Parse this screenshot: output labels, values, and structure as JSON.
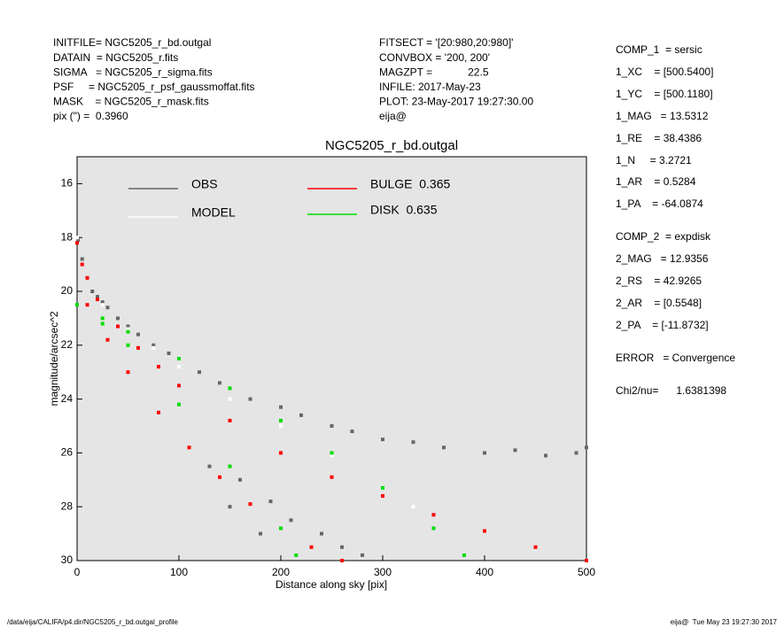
{
  "header": {
    "left": [
      "INITFILE= NGC5205_r_bd.outgal",
      "DATAIN  = NGC5205_r.fits",
      "SIGMA   = NGC5205_r_sigma.fits",
      "PSF     = NGC5205_r_psf_gaussmoffat.fits",
      "MASK    = NGC5205_r_mask.fits",
      "pix (\") =  0.3960"
    ],
    "middle": [
      "FITSECT = '[20:980,20:980]'",
      "CONVBOX = '200, 200'",
      "MAGZPT =            22.5",
      "INFILE: 2017-May-23",
      "PLOT: 23-May-2017 19:27:30.00",
      "eija@"
    ],
    "right": [
      "COMP_1  = sersic",
      "1_XC    = [500.5400]",
      "1_YC    = [500.1180]",
      "1_MAG   = 13.5312",
      "1_RE    = 38.4386",
      "1_N     = 3.2721",
      "1_AR    = 0.5284",
      "1_PA    = -64.0874",
      "COMP_2  = expdisk",
      "2_MAG   = 12.9356",
      "2_RS    = 42.9265",
      "2_AR    = [0.5548]",
      "2_PA    = [-11.8732]",
      "ERROR   = Convergence",
      "Chi2/nu=      1.6381398"
    ]
  },
  "footer": {
    "left": "/data/eija/CALIFA/p4.dir/NGC5205_r_bd.outgal_profile",
    "right": "eija@  Tue May 23 19:27:30 2017"
  },
  "chart_data": {
    "type": "scatter",
    "title": "NGC5205_r_bd.outgal",
    "x_label": "Distance along sky [pix]",
    "y_label": "magnitude/arcsec^2",
    "xlim": [
      0,
      500
    ],
    "xticks": [
      0,
      100,
      200,
      300,
      400,
      500
    ],
    "ylim": [
      30,
      15
    ],
    "yticks": [
      16,
      18,
      20,
      22,
      24,
      26,
      28,
      30
    ],
    "series": [
      {
        "name": "OBS",
        "color": "#666666",
        "x": [
          1,
          5,
          10,
          15,
          20,
          25,
          30,
          40,
          50,
          60,
          75,
          90,
          100,
          120,
          140,
          150,
          170,
          200,
          220,
          250,
          270,
          300,
          330,
          360,
          400,
          430,
          460,
          490,
          500,
          130,
          160,
          190,
          210,
          240,
          260,
          280,
          150,
          180
        ],
        "values": [
          18.1,
          18.8,
          19.5,
          20,
          20.2,
          20.4,
          20.6,
          21,
          21.3,
          21.6,
          22,
          22.3,
          22.5,
          23,
          23.4,
          23.6,
          24,
          24.3,
          24.6,
          25,
          25.2,
          25.5,
          25.6,
          25.8,
          26,
          25.9,
          26.1,
          26,
          25.8,
          26.5,
          27,
          27.8,
          28.5,
          29,
          29.5,
          29.8,
          28,
          29
        ]
      },
      {
        "name": "MODEL",
        "color": "#ffffff",
        "x": [
          0,
          10,
          25,
          50,
          75,
          100,
          150,
          200,
          250,
          300,
          330
        ],
        "values": [
          18,
          19.5,
          20.5,
          21.4,
          22.1,
          22.8,
          24,
          25,
          26.1,
          27.3,
          28
        ]
      },
      {
        "name": "BULGE  0.365",
        "color": "#ff0000",
        "x": [
          0,
          5,
          10,
          20,
          40,
          60,
          80,
          100,
          150,
          200,
          250,
          300,
          350,
          400,
          450,
          500,
          10,
          30,
          50,
          80,
          110,
          140,
          170,
          200,
          230,
          260
        ],
        "values": [
          18.2,
          19,
          19.5,
          20.3,
          21.3,
          22.1,
          22.8,
          23.5,
          24.8,
          26,
          26.9,
          27.6,
          28.3,
          28.9,
          29.5,
          30,
          20.5,
          21.8,
          23,
          24.5,
          25.8,
          26.9,
          27.9,
          28.8,
          29.5,
          30
        ]
      },
      {
        "name": "DISK  0.635",
        "color": "#00dd00",
        "x": [
          0,
          25,
          50,
          100,
          150,
          200,
          250,
          300,
          350,
          380,
          25,
          50,
          100,
          150,
          200,
          215
        ],
        "values": [
          20.5,
          21,
          21.5,
          22.5,
          23.6,
          24.8,
          26,
          27.3,
          28.8,
          29.8,
          21.2,
          22,
          24.2,
          26.5,
          28.8,
          29.8
        ]
      }
    ]
  }
}
